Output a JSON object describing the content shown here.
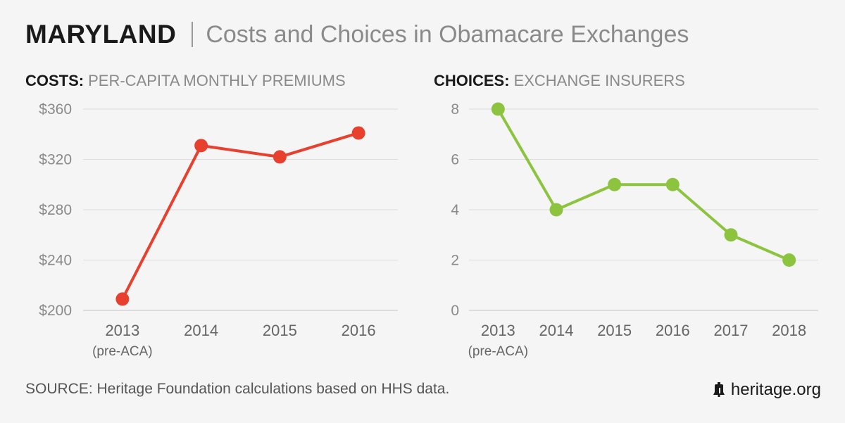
{
  "header": {
    "state": "MARYLAND",
    "title": "Costs and Choices in Obamacare Exchanges"
  },
  "panels": {
    "costs": {
      "strong": "COSTS:",
      "rest": "PER-CAPITA MONTHLY PREMIUMS"
    },
    "choices": {
      "strong": "CHOICES:",
      "rest": "EXCHANGE INSURERS"
    }
  },
  "footer": {
    "source": "SOURCE: Heritage Foundation calculations based on HHS data.",
    "brand": "heritage.org",
    "brand_icon": "liberty-bell-icon"
  },
  "chart_data": [
    {
      "type": "line",
      "title": "PER-CAPITA MONTHLY PREMIUMS",
      "categories": [
        "2013",
        "2014",
        "2015",
        "2016"
      ],
      "category_sublabels": [
        "(pre-ACA)",
        "",
        "",
        ""
      ],
      "values": [
        209,
        331,
        322,
        341
      ],
      "ylim": [
        200,
        360
      ],
      "yticks": [
        200,
        240,
        280,
        320,
        360
      ],
      "ytick_labels": [
        "$200",
        "$240",
        "$280",
        "$320",
        "$360"
      ],
      "grid": true,
      "color": "#e8402f"
    },
    {
      "type": "line",
      "title": "EXCHANGE INSURERS",
      "categories": [
        "2013",
        "2014",
        "2015",
        "2016",
        "2017",
        "2018"
      ],
      "category_sublabels": [
        "(pre-ACA)",
        "",
        "",
        "",
        "",
        ""
      ],
      "values": [
        8,
        4,
        5,
        5,
        3,
        2
      ],
      "ylim": [
        0,
        8
      ],
      "yticks": [
        0,
        2,
        4,
        6,
        8
      ],
      "ytick_labels": [
        "0",
        "2",
        "4",
        "6",
        "8"
      ],
      "grid": true,
      "color": "#8cc43f"
    }
  ]
}
